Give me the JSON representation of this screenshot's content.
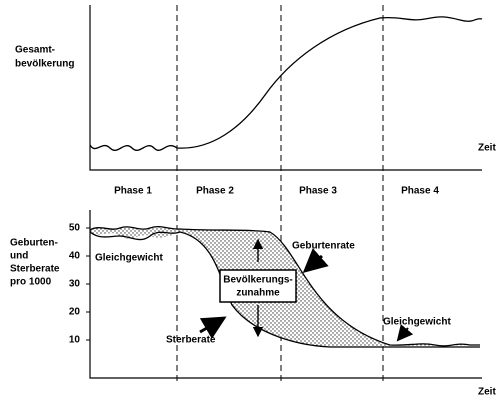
{
  "top_panel": {
    "y_label_lines": [
      "Gesamt-",
      "bevölkerung"
    ],
    "x_label": "Zeit"
  },
  "phases": [
    "Phase 1",
    "Phase 2",
    "Phase 3",
    "Phase 4"
  ],
  "bottom_panel": {
    "y_label_lines": [
      "Geburten-",
      "und",
      "Sterberate",
      "pro 1000"
    ],
    "yticks": [
      "50",
      "40",
      "30",
      "20",
      "10"
    ],
    "x_label": "Zeit",
    "annotations": {
      "equilibrium_left": "Gleichgewicht",
      "birth_rate": "Geburtenrate",
      "increase_lines": [
        "Bevölkerungs-",
        "zunahme"
      ],
      "death_rate": "Sterberate",
      "equilibrium_right": "Gleichgewicht"
    }
  }
}
